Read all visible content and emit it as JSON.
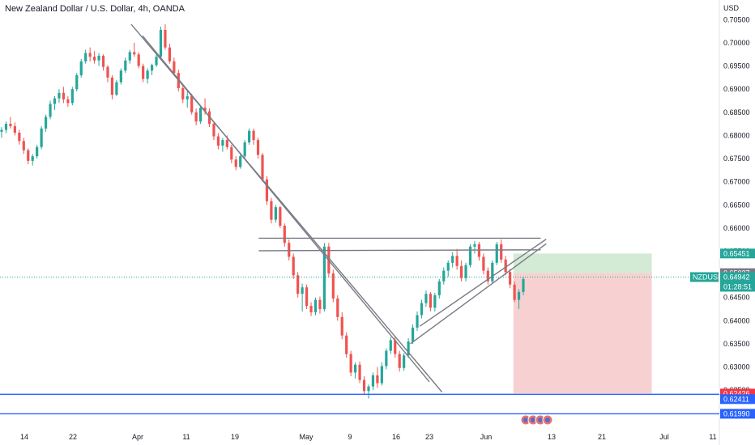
{
  "header": {
    "title": "New Zealand Dollar / U.S. Dollar, 4h, OANDA"
  },
  "chart_data": {
    "type": "candlestick",
    "currency": "USD",
    "ylim": [
      0.617,
      0.7075
    ],
    "y_ticks": [
      0.705,
      0.7,
      0.695,
      0.69,
      0.685,
      0.68,
      0.675,
      0.67,
      0.665,
      0.66,
      0.655,
      0.65,
      0.645,
      0.64,
      0.635,
      0.63,
      0.625
    ],
    "x_ticks": [
      "14",
      "22",
      "Apr",
      "11",
      "19",
      "May",
      "9",
      "16",
      "23",
      "Jun",
      "13",
      "21",
      "Jul",
      "11"
    ],
    "colors": {
      "up": "#26a69a",
      "down": "#ef5350",
      "line": "#787b86",
      "hline": "#2962ff",
      "profit": "#c8e6c9",
      "loss": "#f5c6c6"
    },
    "symbol_tag": {
      "label": "NZDUSD",
      "price": "0.64942",
      "countdown": "01:28:51"
    },
    "price_tags": [
      {
        "value": "0.65451",
        "color": "#26a69a"
      },
      {
        "value": "0.65027",
        "color": "#787b86"
      },
      {
        "value": "0.62426",
        "color": "#f23645"
      },
      {
        "value": "0.62411",
        "color": "#2962ff"
      },
      {
        "value": "0.61990",
        "color": "#2962ff"
      }
    ],
    "horizontal_lines": [
      0.6241,
      0.6199
    ],
    "trend_lines": [
      {
        "from": [
          "Mar 31",
          0.704
        ],
        "to": [
          "May 25",
          0.6246
        ]
      },
      {
        "from": [
          "Apr 2",
          0.7015
        ],
        "to": [
          "May 23",
          0.6268
        ]
      },
      {
        "from": [
          "Apr 23",
          0.6578
        ],
        "to": [
          "Jun 11",
          0.6578
        ]
      },
      {
        "from": [
          "Apr 23",
          0.6551
        ],
        "to": [
          "Jun 11",
          0.6553
        ]
      },
      {
        "from": [
          "May 19",
          0.635
        ],
        "to": [
          "Jun 12",
          0.6566
        ]
      },
      {
        "from": [
          "May 21",
          0.6388
        ],
        "to": [
          "Jun 12",
          0.6576
        ]
      }
    ],
    "position": {
      "entry": 0.6503,
      "target": 0.6545,
      "stop": 0.6243,
      "start": "Jun 6",
      "end": "Jun 29"
    },
    "candles": [
      [
        0.6808,
        0.6818,
        0.6795,
        0.6812
      ],
      [
        0.6812,
        0.683,
        0.6805,
        0.6825
      ],
      [
        0.6825,
        0.684,
        0.6815,
        0.682
      ],
      [
        0.682,
        0.6828,
        0.68,
        0.6806
      ],
      [
        0.6806,
        0.6812,
        0.678,
        0.6788
      ],
      [
        0.6788,
        0.6795,
        0.676,
        0.6768
      ],
      [
        0.6768,
        0.6772,
        0.6738,
        0.6745
      ],
      [
        0.6745,
        0.676,
        0.6735,
        0.6755
      ],
      [
        0.6755,
        0.678,
        0.675,
        0.6775
      ],
      [
        0.6775,
        0.682,
        0.677,
        0.6815
      ],
      [
        0.6815,
        0.6845,
        0.6808,
        0.684
      ],
      [
        0.684,
        0.6875,
        0.6835,
        0.6868
      ],
      [
        0.6868,
        0.6885,
        0.6855,
        0.688
      ],
      [
        0.688,
        0.69,
        0.687,
        0.6892
      ],
      [
        0.6892,
        0.6905,
        0.687,
        0.6878
      ],
      [
        0.6878,
        0.6885,
        0.6862,
        0.687
      ],
      [
        0.687,
        0.6905,
        0.6865,
        0.69
      ],
      [
        0.69,
        0.6935,
        0.6895,
        0.693
      ],
      [
        0.693,
        0.6965,
        0.6925,
        0.696
      ],
      [
        0.696,
        0.6985,
        0.6955,
        0.6978
      ],
      [
        0.6978,
        0.699,
        0.696,
        0.697
      ],
      [
        0.697,
        0.6982,
        0.6955,
        0.6962
      ],
      [
        0.6962,
        0.6978,
        0.695,
        0.6972
      ],
      [
        0.6972,
        0.6975,
        0.694,
        0.6948
      ],
      [
        0.6948,
        0.6952,
        0.6915,
        0.6925
      ],
      [
        0.6925,
        0.693,
        0.6878,
        0.6888
      ],
      [
        0.6888,
        0.692,
        0.6885,
        0.6915
      ],
      [
        0.6915,
        0.6945,
        0.691,
        0.694
      ],
      [
        0.694,
        0.6968,
        0.6935,
        0.6962
      ],
      [
        0.6962,
        0.6985,
        0.6955,
        0.698
      ],
      [
        0.698,
        0.7,
        0.697,
        0.6975
      ],
      [
        0.6975,
        0.698,
        0.6945,
        0.695
      ],
      [
        0.695,
        0.6955,
        0.6915,
        0.6922
      ],
      [
        0.6922,
        0.6945,
        0.6912,
        0.694
      ],
      [
        0.694,
        0.6955,
        0.693,
        0.6952
      ],
      [
        0.6952,
        0.6975,
        0.6948,
        0.697
      ],
      [
        0.697,
        0.7035,
        0.6965,
        0.7028
      ],
      [
        0.7028,
        0.704,
        0.6985,
        0.699
      ],
      [
        0.699,
        0.6998,
        0.6955,
        0.696
      ],
      [
        0.696,
        0.6968,
        0.693,
        0.6935
      ],
      [
        0.6935,
        0.6942,
        0.6895,
        0.6902
      ],
      [
        0.6902,
        0.691,
        0.687,
        0.6878
      ],
      [
        0.6878,
        0.6895,
        0.686,
        0.6885
      ],
      [
        0.6885,
        0.689,
        0.6845,
        0.685
      ],
      [
        0.685,
        0.6858,
        0.6822,
        0.683
      ],
      [
        0.683,
        0.6865,
        0.6825,
        0.686
      ],
      [
        0.686,
        0.688,
        0.6845,
        0.6852
      ],
      [
        0.6852,
        0.6858,
        0.6818,
        0.6825
      ],
      [
        0.6825,
        0.683,
        0.679,
        0.6798
      ],
      [
        0.6798,
        0.6805,
        0.677,
        0.6778
      ],
      [
        0.6778,
        0.6795,
        0.6765,
        0.679
      ],
      [
        0.679,
        0.68,
        0.677,
        0.6775
      ],
      [
        0.6775,
        0.678,
        0.674,
        0.6748
      ],
      [
        0.6748,
        0.6755,
        0.6725,
        0.6732
      ],
      [
        0.6732,
        0.676,
        0.6728,
        0.6755
      ],
      [
        0.6755,
        0.679,
        0.675,
        0.6785
      ],
      [
        0.6785,
        0.6815,
        0.678,
        0.681
      ],
      [
        0.681,
        0.6815,
        0.678,
        0.679
      ],
      [
        0.679,
        0.6795,
        0.675,
        0.6758
      ],
      [
        0.6758,
        0.6762,
        0.67,
        0.6705
      ],
      [
        0.6705,
        0.6712,
        0.665,
        0.6658
      ],
      [
        0.6658,
        0.6665,
        0.661,
        0.6618
      ],
      [
        0.6618,
        0.665,
        0.6612,
        0.6645
      ],
      [
        0.6645,
        0.6648,
        0.66,
        0.6605
      ],
      [
        0.6605,
        0.661,
        0.656,
        0.6568
      ],
      [
        0.6568,
        0.6575,
        0.653,
        0.6538
      ],
      [
        0.6538,
        0.6545,
        0.649,
        0.6498
      ],
      [
        0.6498,
        0.6505,
        0.645,
        0.6458
      ],
      [
        0.6458,
        0.648,
        0.642,
        0.6472
      ],
      [
        0.6472,
        0.6478,
        0.6425,
        0.6432
      ],
      [
        0.6432,
        0.644,
        0.641,
        0.6418
      ],
      [
        0.6418,
        0.645,
        0.6412,
        0.6445
      ],
      [
        0.6445,
        0.6452,
        0.6415,
        0.6425
      ],
      [
        0.6425,
        0.6568,
        0.642,
        0.656
      ],
      [
        0.656,
        0.6568,
        0.6495,
        0.6502
      ],
      [
        0.6502,
        0.651,
        0.644,
        0.6448
      ],
      [
        0.6448,
        0.6455,
        0.64,
        0.6408
      ],
      [
        0.6408,
        0.6418,
        0.636,
        0.6368
      ],
      [
        0.6368,
        0.6375,
        0.632,
        0.6328
      ],
      [
        0.6328,
        0.6335,
        0.628,
        0.6288
      ],
      [
        0.6288,
        0.631,
        0.6275,
        0.6305
      ],
      [
        0.6305,
        0.6312,
        0.6265,
        0.6272
      ],
      [
        0.6272,
        0.628,
        0.624,
        0.6248
      ],
      [
        0.6248,
        0.6262,
        0.6232,
        0.6258
      ],
      [
        0.6258,
        0.6288,
        0.625,
        0.6282
      ],
      [
        0.6282,
        0.63,
        0.6255,
        0.6265
      ],
      [
        0.6265,
        0.631,
        0.626,
        0.6302
      ],
      [
        0.6302,
        0.634,
        0.6295,
        0.6335
      ],
      [
        0.6335,
        0.6365,
        0.6328,
        0.6358
      ],
      [
        0.6358,
        0.6365,
        0.632,
        0.6328
      ],
      [
        0.6328,
        0.6335,
        0.629,
        0.6298
      ],
      [
        0.6298,
        0.633,
        0.6292,
        0.6325
      ],
      [
        0.6325,
        0.6362,
        0.632,
        0.6355
      ],
      [
        0.6355,
        0.6392,
        0.635,
        0.6385
      ],
      [
        0.6385,
        0.642,
        0.6378,
        0.6412
      ],
      [
        0.6412,
        0.6445,
        0.6405,
        0.6438
      ],
      [
        0.6438,
        0.6465,
        0.643,
        0.6458
      ],
      [
        0.6458,
        0.6462,
        0.642,
        0.6428
      ],
      [
        0.6428,
        0.646,
        0.642,
        0.6455
      ],
      [
        0.6455,
        0.649,
        0.6448,
        0.6485
      ],
      [
        0.6485,
        0.6515,
        0.6478,
        0.6508
      ],
      [
        0.6508,
        0.653,
        0.6495,
        0.6525
      ],
      [
        0.6525,
        0.6548,
        0.6515,
        0.654
      ],
      [
        0.654,
        0.6555,
        0.651,
        0.6518
      ],
      [
        0.6518,
        0.653,
        0.6485,
        0.6492
      ],
      [
        0.6492,
        0.6525,
        0.6485,
        0.652
      ],
      [
        0.652,
        0.6565,
        0.6515,
        0.656
      ],
      [
        0.656,
        0.6572,
        0.6545,
        0.6565
      ],
      [
        0.6565,
        0.657,
        0.653,
        0.6538
      ],
      [
        0.6538,
        0.6545,
        0.65,
        0.6508
      ],
      [
        0.6508,
        0.6515,
        0.6478,
        0.6485
      ],
      [
        0.6485,
        0.653,
        0.648,
        0.6525
      ],
      [
        0.6525,
        0.657,
        0.652,
        0.6565
      ],
      [
        0.6565,
        0.6575,
        0.6525,
        0.6532
      ],
      [
        0.6532,
        0.654,
        0.6498,
        0.6505
      ],
      [
        0.6505,
        0.6512,
        0.647,
        0.6478
      ],
      [
        0.6478,
        0.6485,
        0.644,
        0.6445
      ],
      [
        0.6445,
        0.6468,
        0.6425,
        0.6462
      ],
      [
        0.6462,
        0.6495,
        0.6455,
        0.649
      ]
    ]
  }
}
